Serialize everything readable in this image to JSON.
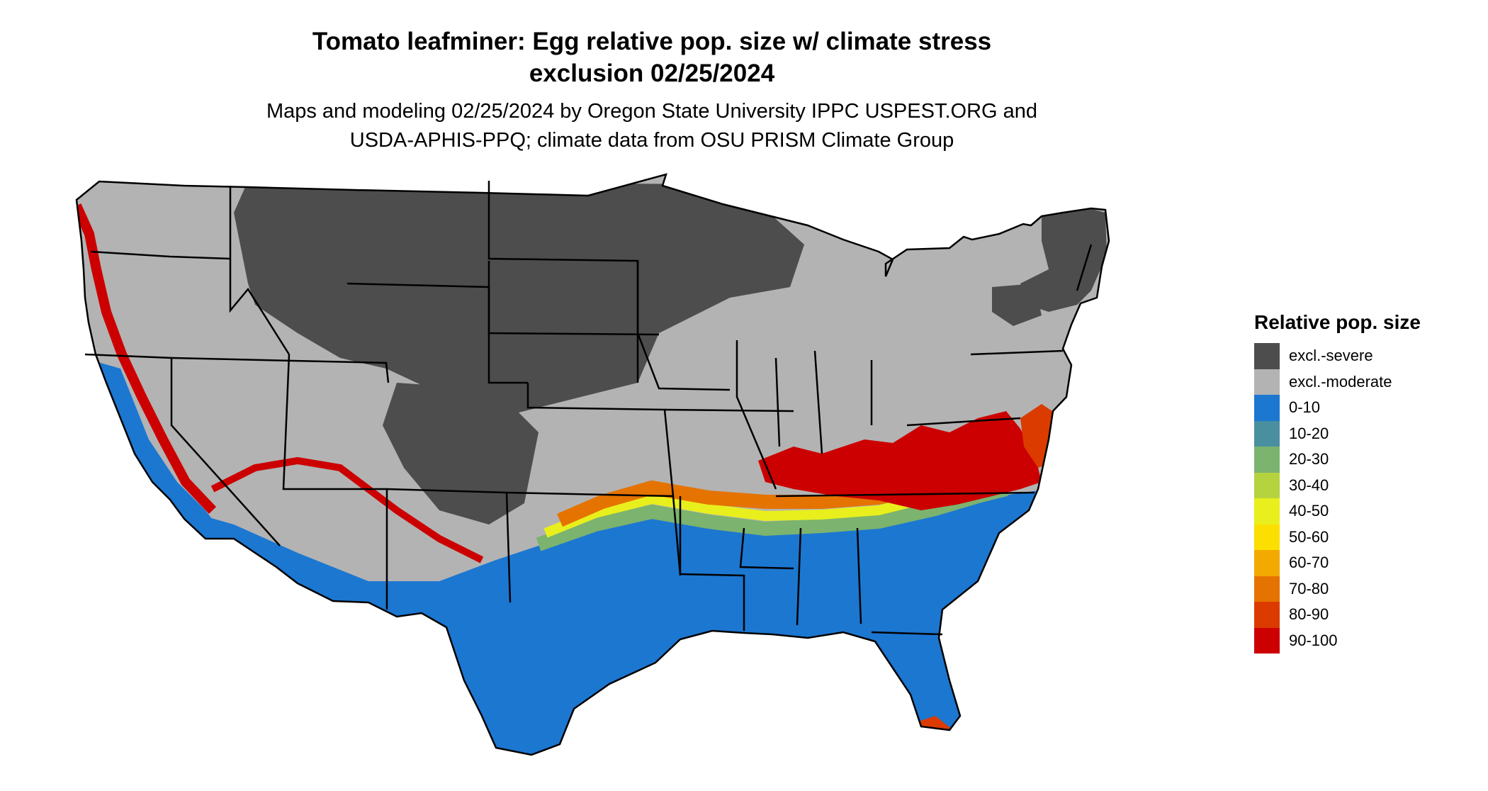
{
  "title": {
    "line1": "Tomato leafminer: Egg relative pop. size w/ climate stress",
    "line2": "exclusion 02/25/2024"
  },
  "subtitle": {
    "line1": "Maps and modeling 02/25/2024 by Oregon State University IPPC USPEST.ORG and",
    "line2": "USDA-APHIS-PPQ; climate data from OSU PRISM Climate Group"
  },
  "legend": {
    "title": "Relative pop. size",
    "items": [
      {
        "label": "excl.-severe",
        "color": "#4d4d4d"
      },
      {
        "label": "excl.-moderate",
        "color": "#b3b3b3"
      },
      {
        "label": "0-10",
        "color": "#1c77d1"
      },
      {
        "label": "10-20",
        "color": "#4a8fa0"
      },
      {
        "label": "20-30",
        "color": "#7cb36e"
      },
      {
        "label": "30-40",
        "color": "#b5d23f"
      },
      {
        "label": "40-50",
        "color": "#e8ef1c"
      },
      {
        "label": "50-60",
        "color": "#fbdf00"
      },
      {
        "label": "60-70",
        "color": "#f2a900"
      },
      {
        "label": "70-80",
        "color": "#e57300"
      },
      {
        "label": "80-90",
        "color": "#dc3b00"
      },
      {
        "label": "90-100",
        "color": "#cc0000"
      }
    ]
  },
  "map": {
    "region": "Contiguous United States",
    "boundaries": "state outlines"
  }
}
